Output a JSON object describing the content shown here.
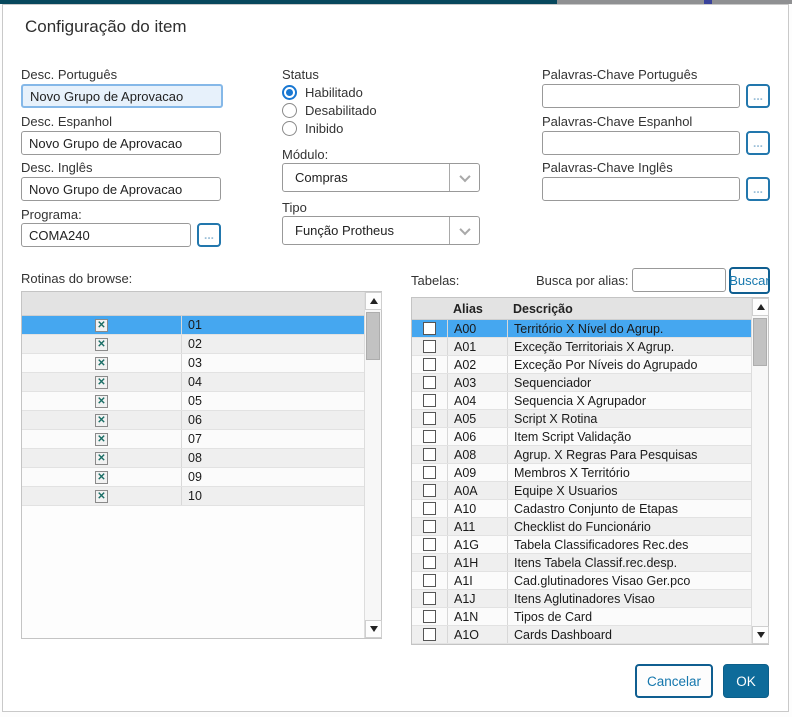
{
  "window": {
    "title": "Configuração do item"
  },
  "left_fields": [
    {
      "label": "Desc. Português",
      "value": "Novo Grupo de Aprovacao",
      "focused": true
    },
    {
      "label": "Desc. Espanhol",
      "value": "Novo Grupo de Aprovacao",
      "focused": false
    },
    {
      "label": "Desc. Inglês",
      "value": "Novo Grupo de Aprovacao",
      "focused": false
    }
  ],
  "programa": {
    "label": "Programa:",
    "value": "COMA240",
    "browse_button": "..."
  },
  "status": {
    "label": "Status",
    "options": [
      {
        "label": "Habilitado",
        "selected": true
      },
      {
        "label": "Desabilitado",
        "selected": false
      },
      {
        "label": "Inibido",
        "selected": false
      }
    ]
  },
  "modulo": {
    "label": "Módulo:",
    "selected": "Compras"
  },
  "tipo": {
    "label": "Tipo",
    "selected": "Função Protheus"
  },
  "keywords": [
    {
      "label": "Palavras-Chave Português",
      "value": "",
      "browse_button": "..."
    },
    {
      "label": "Palavras-Chave Espanhol",
      "value": "",
      "browse_button": "..."
    },
    {
      "label": "Palavras-Chave Inglês",
      "value": "",
      "browse_button": "..."
    }
  ],
  "rotinas": {
    "label": "Rotinas do browse:",
    "selected_code": "01",
    "rows": [
      {
        "code": "01",
        "checked": true
      },
      {
        "code": "02",
        "checked": true
      },
      {
        "code": "03",
        "checked": true
      },
      {
        "code": "04",
        "checked": true
      },
      {
        "code": "05",
        "checked": true
      },
      {
        "code": "06",
        "checked": true
      },
      {
        "code": "07",
        "checked": true
      },
      {
        "code": "08",
        "checked": true
      },
      {
        "code": "09",
        "checked": true
      },
      {
        "code": "10",
        "checked": true
      }
    ]
  },
  "tabelas": {
    "label": "Tabelas:",
    "search_label": "Busca por alias:",
    "search_value": "",
    "buscar_button": "Buscar",
    "columns": [
      "Alias",
      "Descrição"
    ],
    "selected_alias": "A00",
    "rows": [
      {
        "alias": "A00",
        "descricao": "Território X Nível do Agrup.",
        "checked": false
      },
      {
        "alias": "A01",
        "descricao": "Exceção Territoriais X Agrup.",
        "checked": false
      },
      {
        "alias": "A02",
        "descricao": "Exceção Por Níveis do Agrupado",
        "checked": false
      },
      {
        "alias": "A03",
        "descricao": "Sequenciador",
        "checked": false
      },
      {
        "alias": "A04",
        "descricao": "Sequencia X Agrupador",
        "checked": false
      },
      {
        "alias": "A05",
        "descricao": "Script X Rotina",
        "checked": false
      },
      {
        "alias": "A06",
        "descricao": "Item Script Validação",
        "checked": false
      },
      {
        "alias": "A08",
        "descricao": "Agrup. X Regras Para Pesquisas",
        "checked": false
      },
      {
        "alias": "A09",
        "descricao": "Membros X Território",
        "checked": false
      },
      {
        "alias": "A0A",
        "descricao": "Equipe X Usuarios",
        "checked": false
      },
      {
        "alias": "A10",
        "descricao": "Cadastro Conjunto de Etapas",
        "checked": false
      },
      {
        "alias": "A11",
        "descricao": "Checklist do Funcionário",
        "checked": false
      },
      {
        "alias": "A1G",
        "descricao": "Tabela Classificadores Rec.des",
        "checked": false
      },
      {
        "alias": "A1H",
        "descricao": "Itens Tabela Classif.rec.desp.",
        "checked": false
      },
      {
        "alias": "A1I",
        "descricao": "Cad.glutinadores Visao Ger.pco",
        "checked": false
      },
      {
        "alias": "A1J",
        "descricao": "Itens Aglutinadores Visao",
        "checked": false
      },
      {
        "alias": "A1N",
        "descricao": "Tipos de Card",
        "checked": false
      },
      {
        "alias": "A1O",
        "descricao": "Cards Dashboard",
        "checked": false
      }
    ]
  },
  "footer": {
    "cancel_label": "Cancelar",
    "ok_label": "OK"
  },
  "colors": {
    "accent_blue": "#0e6b9a",
    "selection_blue": "#45a7f0",
    "topbar_teal": "#07485d",
    "check_x_teal": "#1b6e66",
    "focused_field_bg": "#e7f1fb"
  }
}
